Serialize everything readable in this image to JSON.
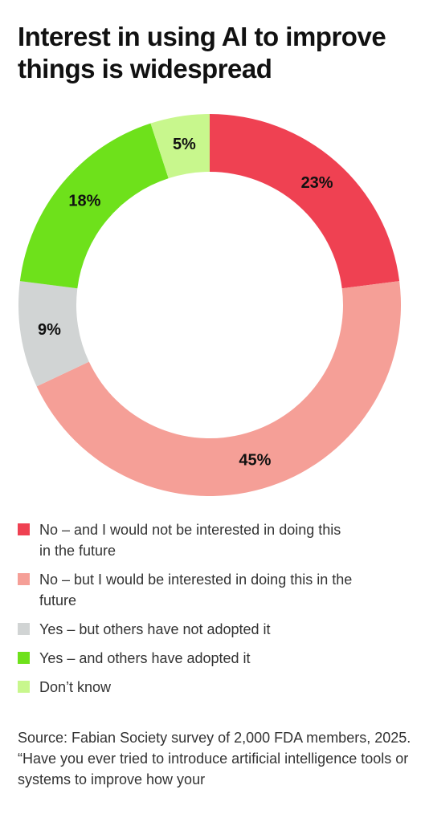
{
  "chart_data": {
    "type": "donut",
    "title": "Interest in using AI to improve things is widespread",
    "categories": [
      "No – and I would not be interested in doing this in the future",
      "No – but I would be interested in doing this in the future",
      "Yes – but others have not adopted it",
      "Yes – and others have adopted it",
      "Don’t know"
    ],
    "values": [
      23,
      45,
      9,
      18,
      5
    ],
    "value_labels": [
      "23%",
      "45%",
      "9%",
      "18%",
      "5%"
    ],
    "colors": [
      "#ef4152",
      "#f59f97",
      "#d1d4d4",
      "#6ee11b",
      "#c8f78d"
    ],
    "source": "Source: Fabian Society survey of 2,000 FDA members, 2025. “Have you ever tried to introduce artificial intelligence tools or systems to improve how your"
  }
}
